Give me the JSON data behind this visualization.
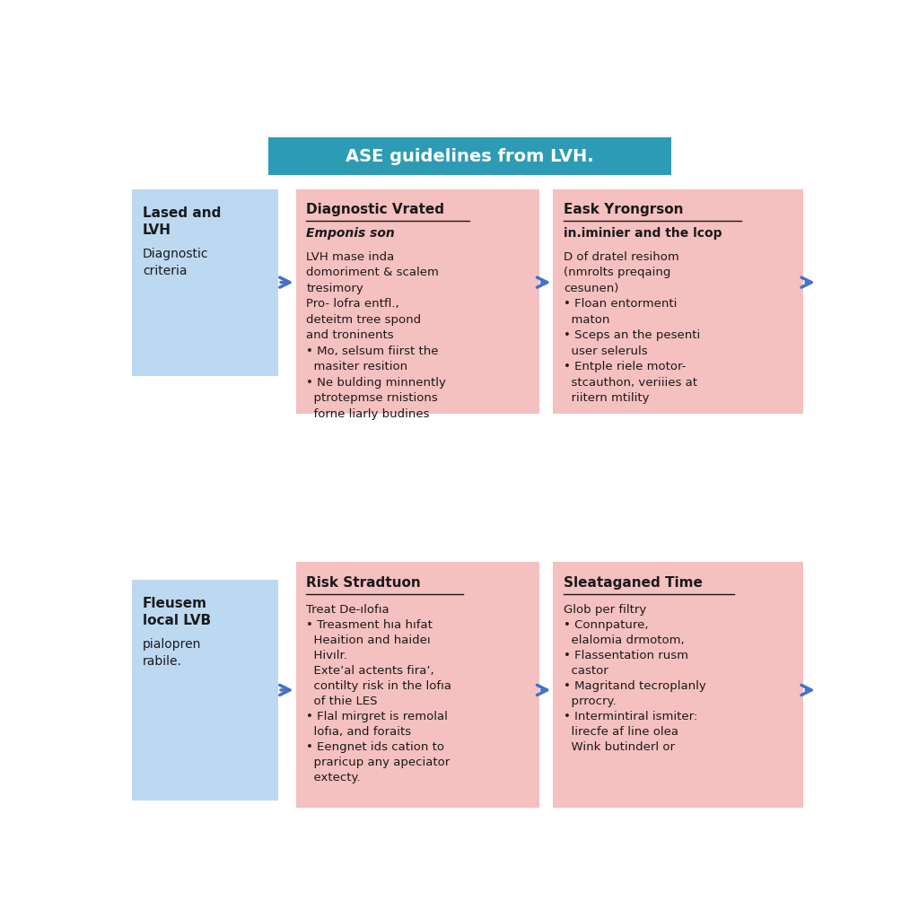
{
  "title": "ASE guidelines from LVH.",
  "title_bg": "#2E9BB5",
  "title_color": "#ffffff",
  "bg_color": "#ffffff",
  "pink_bg": "#F5C0C0",
  "blue_bg": "#BDD9F2",
  "arrow_color": "#4472C4",
  "box1_title_bold": "Lased and\nLVH",
  "box1_text": "Diagnostic\ncriteria",
  "box2_title_underline": "Diagnostic Vrated",
  "box2_subtitle_bold": "Emponis son",
  "box2_text": "LVH mase inda\ndomoriment & scalem\ntresimory\nPro- lofra entfl.,\ndeteitm tree spond\nand troninents\n• Mo, selsum fiirst the\n  masiter resition\n• Ne bulding minnently\n  ptrotepmse rnistions\n  forne liarly budines",
  "box3_title_underline": "Eask Yrongrson",
  "box3_subtitle_bold": "in.iminier and the lcop",
  "box3_text": "D of dratel resihom\n(nmrolts preqaing\ncesunen)\n• Floan entormenti\n  maton\n• Sceps an the pesenti\n  user seleruls\n• Entple riele motor-\n  stcauthon, veriiies at\n  riitern mtility",
  "box4_title_bold": "Fleusem\nlocal LVB",
  "box4_text": "pialopren\nrabile.",
  "box5_title_underline": "Risk Stradtuon",
  "box5_text": "Treat De-ılofıa\n• Treasment hıa hıfat\n  Heaition and haideı\n  Hivılr.\n  Exteʼal actents firaʼ,\n  contilty risk in the lofıa\n  of thie LES\n• Flal mirgret is remolal\n  lofıa, and foraits\n• Eengnet ids cation to\n  praricup any apeciator\n  extecty.",
  "box6_title_underline": "Sleataganed Time",
  "box6_text": "Glob per filtry\n• Connpature,\n  elalomia drmotom,\n• Flassentation rusm\n  castor\n• Magritand tecroplanly\n  prrocry.\n• Intermintiral ismiter:\n  lirecfe af line olea\n  Wink butinderl or"
}
